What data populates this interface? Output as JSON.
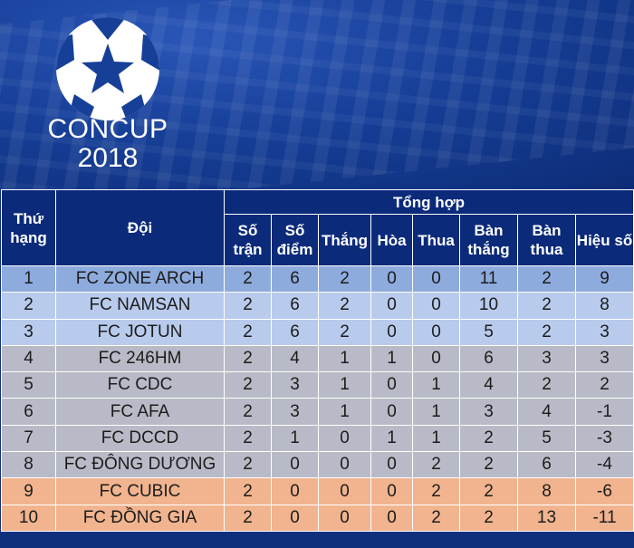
{
  "banner": {
    "logo_name": "CONCUP",
    "logo_year": "2018",
    "logo_icon": "soccer-ball-star-icon"
  },
  "table": {
    "headers": {
      "rank": "Thứ hạng",
      "team": "Đội",
      "group": "Tổng hợp",
      "played": "Số trận",
      "points": "Số điểm",
      "won": "Thắng",
      "drawn": "Hòa",
      "lost": "Thua",
      "goals_for": "Bàn thắng",
      "goals_against": "Bàn thua",
      "goal_diff": "Hiệu số"
    },
    "rows": [
      {
        "rank": "1",
        "team": "FC ZONE ARCH",
        "played": "2",
        "points": "6",
        "won": "2",
        "drawn": "0",
        "lost": "0",
        "gf": "11",
        "ga": "2",
        "gd": "9"
      },
      {
        "rank": "2",
        "team": "FC NAMSAN",
        "played": "2",
        "points": "6",
        "won": "2",
        "drawn": "0",
        "lost": "0",
        "gf": "10",
        "ga": "2",
        "gd": "8"
      },
      {
        "rank": "3",
        "team": "FC JOTUN",
        "played": "2",
        "points": "6",
        "won": "2",
        "drawn": "0",
        "lost": "0",
        "gf": "5",
        "ga": "2",
        "gd": "3"
      },
      {
        "rank": "4",
        "team": "FC 246HM",
        "played": "2",
        "points": "4",
        "won": "1",
        "drawn": "1",
        "lost": "0",
        "gf": "6",
        "ga": "3",
        "gd": "3"
      },
      {
        "rank": "5",
        "team": "FC CDC",
        "played": "2",
        "points": "3",
        "won": "1",
        "drawn": "0",
        "lost": "1",
        "gf": "4",
        "ga": "2",
        "gd": "2"
      },
      {
        "rank": "6",
        "team": "FC AFA",
        "played": "2",
        "points": "3",
        "won": "1",
        "drawn": "0",
        "lost": "1",
        "gf": "3",
        "ga": "4",
        "gd": "-1"
      },
      {
        "rank": "7",
        "team": "FC DCCD",
        "played": "2",
        "points": "1",
        "won": "0",
        "drawn": "1",
        "lost": "1",
        "gf": "2",
        "ga": "5",
        "gd": "-3"
      },
      {
        "rank": "8",
        "team": "FC ĐÔNG DƯƠNG",
        "played": "2",
        "points": "0",
        "won": "0",
        "drawn": "0",
        "lost": "2",
        "gf": "2",
        "ga": "6",
        "gd": "-4"
      },
      {
        "rank": "9",
        "team": "FC CUBIC",
        "played": "2",
        "points": "0",
        "won": "0",
        "drawn": "0",
        "lost": "2",
        "gf": "2",
        "ga": "8",
        "gd": "-6"
      },
      {
        "rank": "10",
        "team": "FC ĐỒNG GIA",
        "played": "2",
        "points": "0",
        "won": "0",
        "drawn": "0",
        "lost": "2",
        "gf": "2",
        "ga": "13",
        "gd": "-11"
      }
    ]
  },
  "colors": {
    "header_bg": "#0b2a7a",
    "row_blue_dark": "#8eabdd",
    "row_blue_light": "#b9cbec",
    "row_gray": "#b8bbc7",
    "row_orange": "#f1b48f"
  }
}
